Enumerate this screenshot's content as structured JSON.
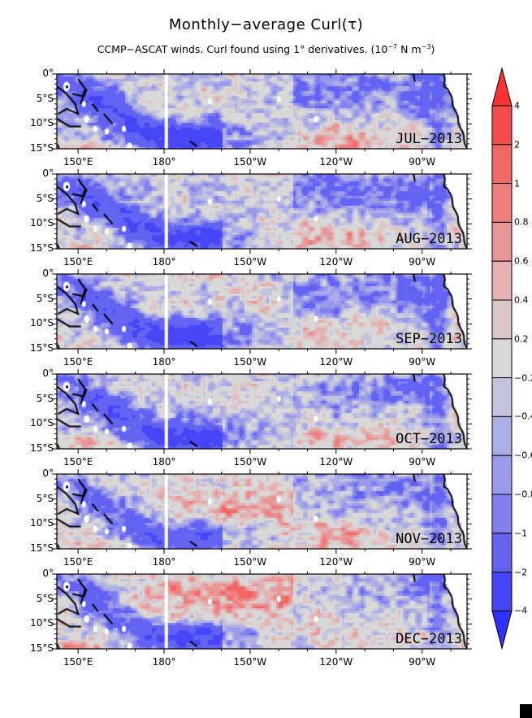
{
  "title": "Monthly−average Curl(τ)",
  "subtitle": {
    "text": "CCMP−ASCAT winds. Curl found using 1° derivatives. (10",
    "exp1": "−7",
    "mid": " N m",
    "exp2": "−3",
    "end": ")"
  },
  "map": {
    "lon_range": [
      "142E",
      "75W"
    ],
    "lat_range": [
      "0",
      "15S"
    ],
    "x_ticks": [
      "150°E",
      "180°",
      "150°W",
      "120°W",
      "90°W"
    ],
    "y_ticks": [
      "0°",
      "5°S",
      "10°S",
      "15°S"
    ],
    "land_color": "#ffffff",
    "coastline_color": "#000000"
  },
  "panels": [
    {
      "label": "JUL−2013"
    },
    {
      "label": "AUG−2013"
    },
    {
      "label": "SEP−2013"
    },
    {
      "label": "OCT−2013"
    },
    {
      "label": "NOV−2013"
    },
    {
      "label": "DEC−2013"
    }
  ],
  "colorbar": {
    "levels": [
      "4",
      "2",
      "1",
      "0.8",
      "0.6",
      "0.4",
      "0.2",
      "−0.2",
      "−0.4",
      "−0.6",
      "−0.8",
      "−1",
      "−2",
      "−4"
    ],
    "colors": [
      "#ff3333",
      "#f44c4c",
      "#f26666",
      "#ef7e7e",
      "#e89696",
      "#e4b0b0",
      "#dfc6c6",
      "#d8d8d8",
      "#c4c4de",
      "#aeaee6",
      "#9a9aea",
      "#8080ef",
      "#6262f3",
      "#4646f8",
      "#3030ff"
    ],
    "extend": "both"
  }
}
